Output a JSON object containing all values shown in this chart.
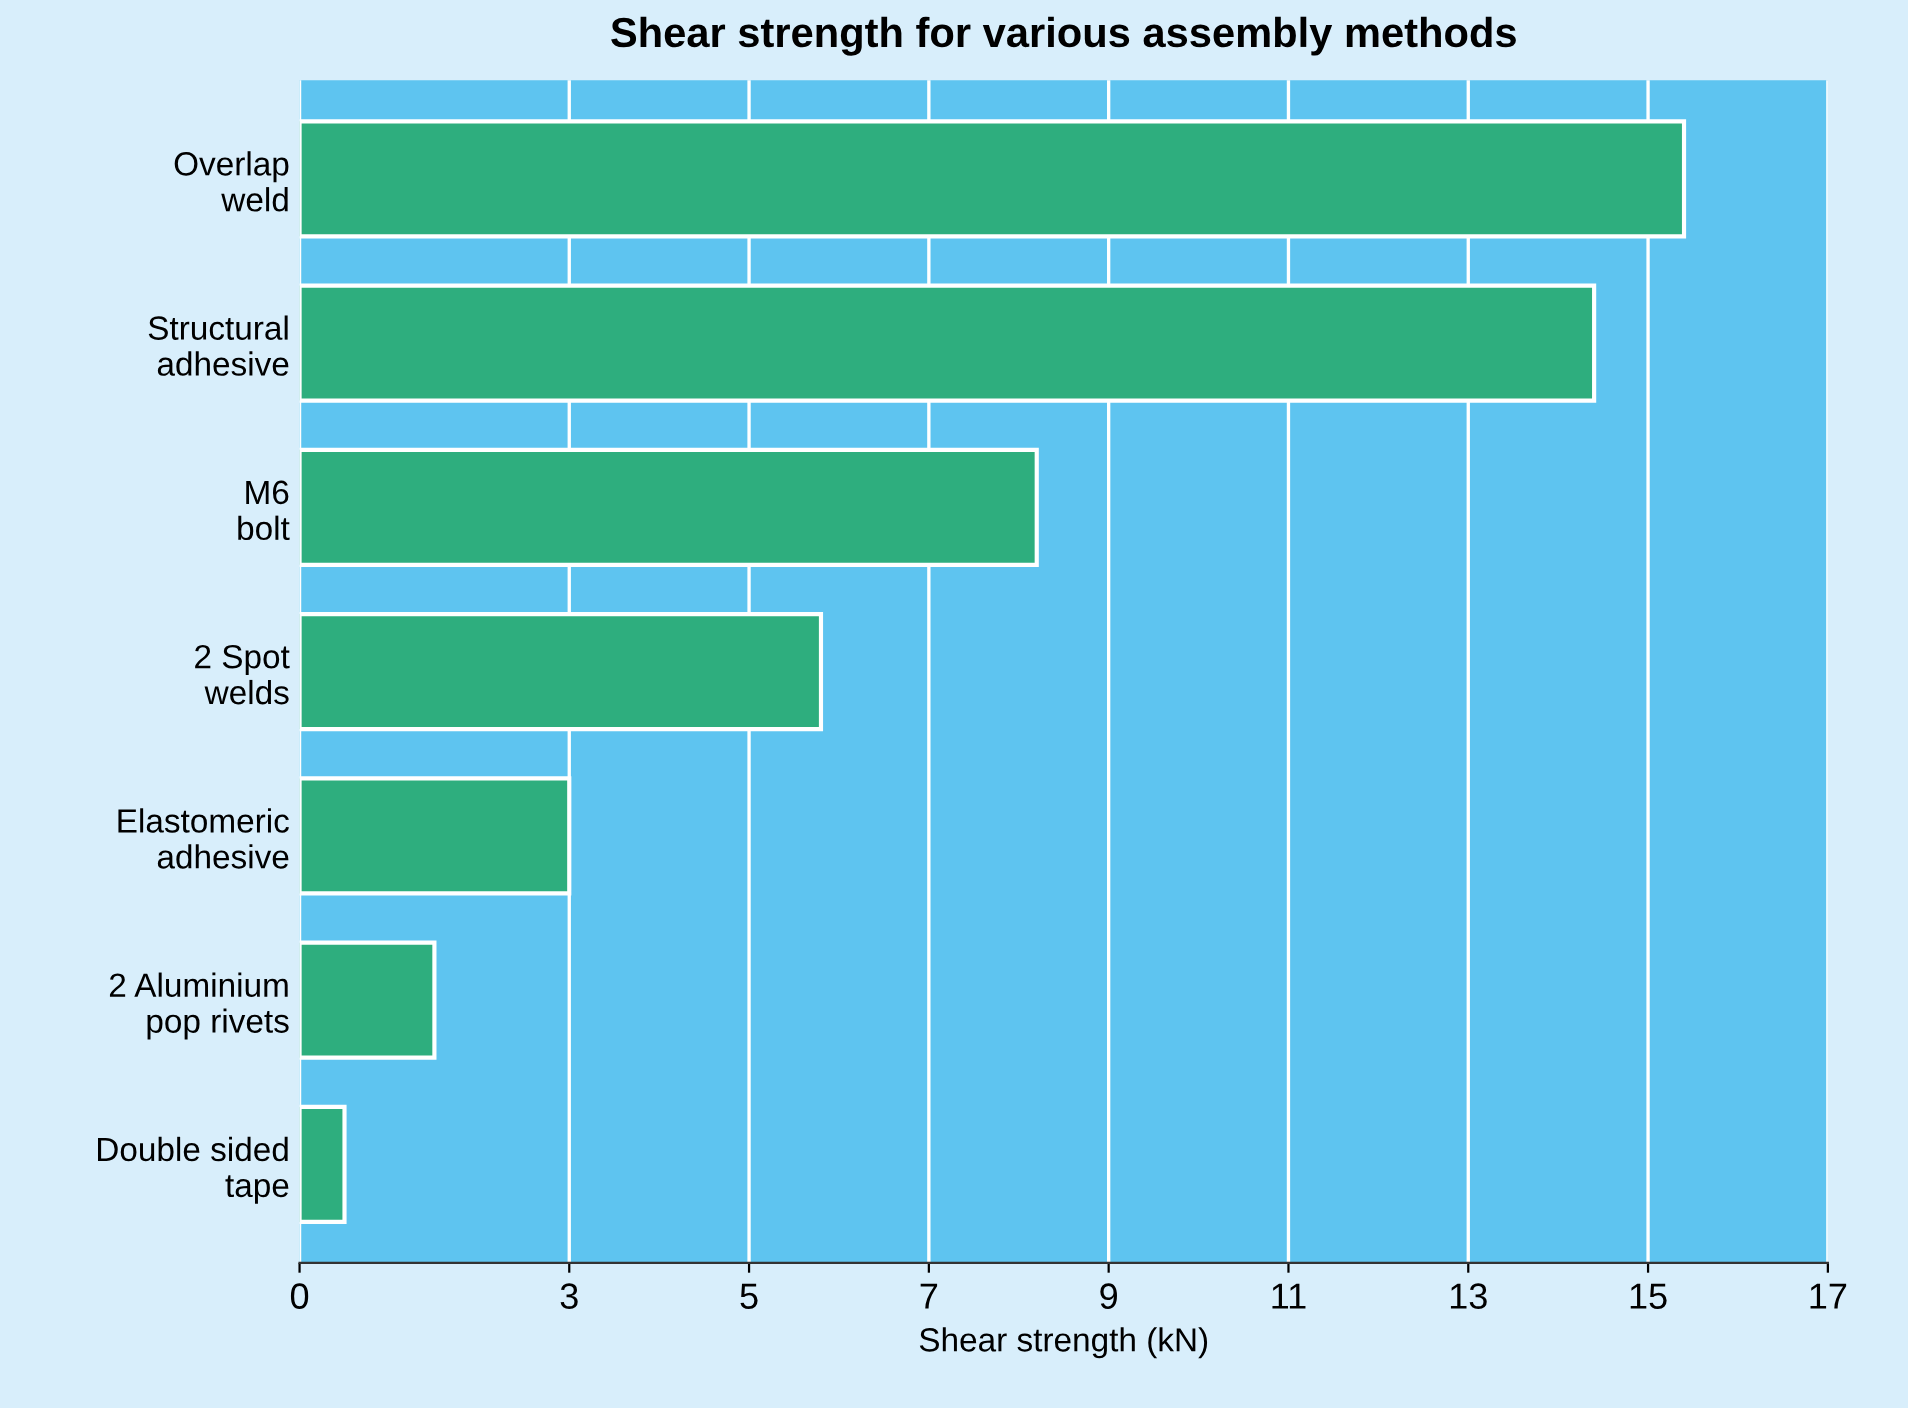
{
  "chart_data": {
    "type": "bar",
    "orientation": "horizontal",
    "title": "Shear strength for various assembly methods",
    "xlabel": "Shear strength (kN)",
    "categories": [
      "Overlap\nweld",
      "Structural\nadhesive",
      "M6\nbolt",
      "2 Spot\nwelds",
      "Elastomeric\nadhesive",
      "2 Aluminium\npop rivets",
      "Double sided\ntape"
    ],
    "values": [
      15.4,
      14.4,
      8.2,
      5.8,
      3.0,
      1.5,
      0.5
    ],
    "color": "#2eae7e",
    "xlim": [
      0,
      17
    ],
    "xticks": [
      0,
      3,
      5,
      7,
      9,
      11,
      13,
      15,
      17
    ],
    "grid": "x"
  }
}
